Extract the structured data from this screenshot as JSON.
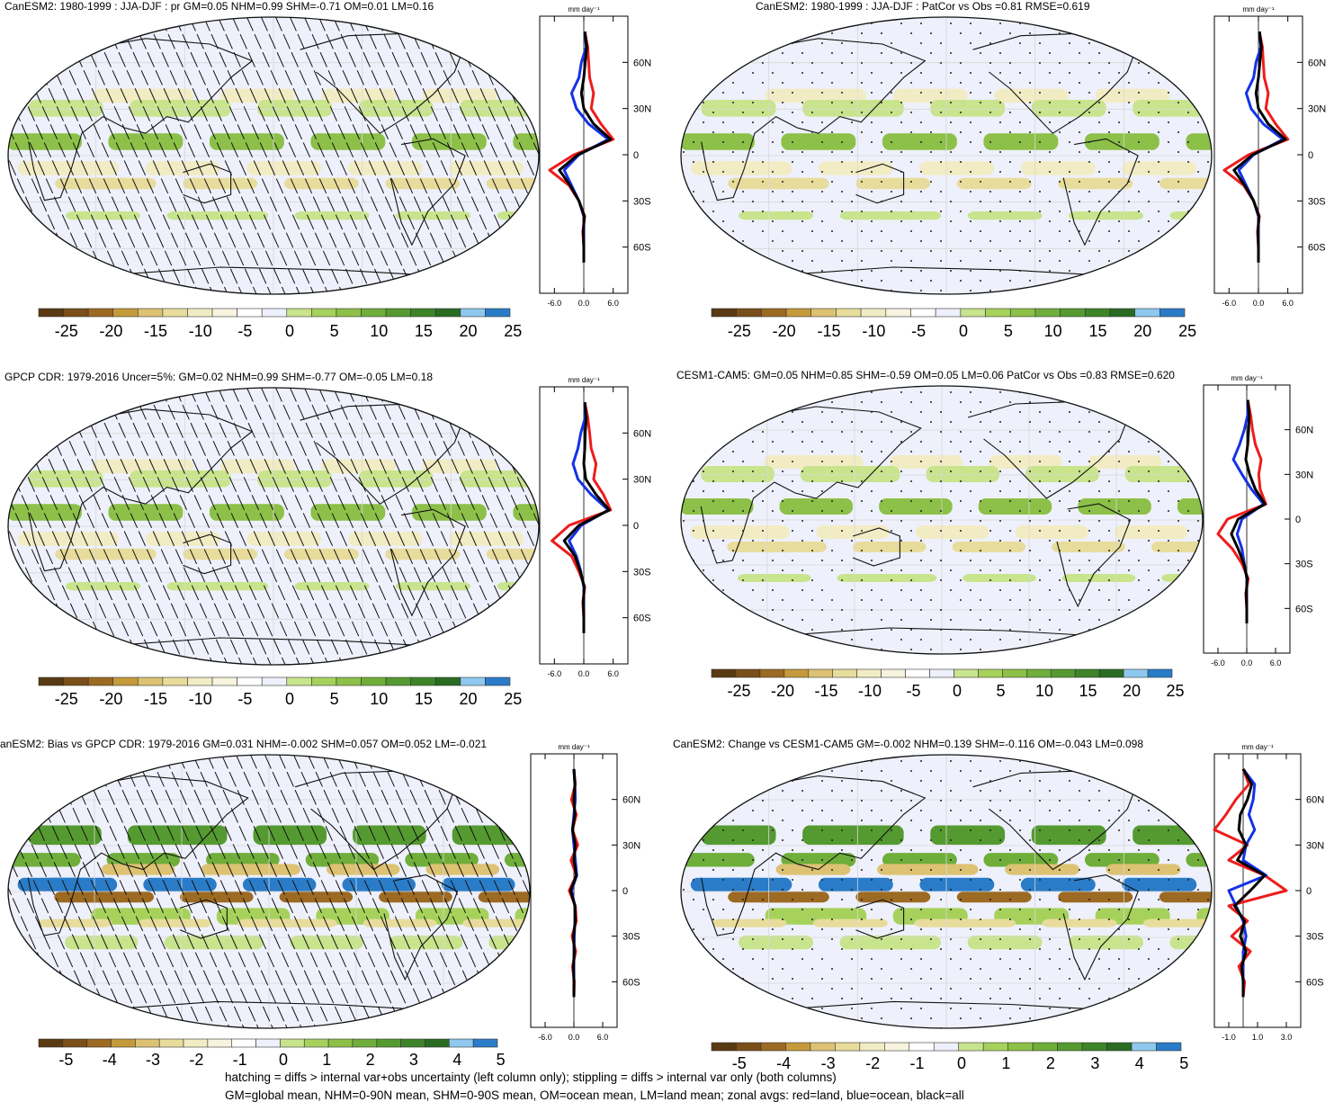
{
  "palette": [
    "#5a3a12",
    "#7a4f1a",
    "#9c6a22",
    "#c59a3a",
    "#dcc272",
    "#e8dc9c",
    "#f2ecc4",
    "#f6f3de",
    "#ffffff",
    "#eef0fb",
    "#c8e48c",
    "#a6d25c",
    "#8cc048",
    "#6fae3a",
    "#559a30",
    "#3d8428",
    "#2a6b22",
    "#8ec8ee",
    "#2a7cc8"
  ],
  "line_colors": {
    "land": "#ee1c1c",
    "ocean": "#1432e6",
    "all": "#000000"
  },
  "panels": [
    {
      "title": "CanESM2: 1980-1999 : JJA-DJF : pr GM=0.05 NHM=0.99 SHM=-0.71 OM=0.01 LM=0.16",
      "overlay": "hatch",
      "colorbar_labels": [
        "-25",
        "-20",
        "-15",
        "-10",
        "-5",
        "0",
        "5",
        "10",
        "15",
        "20",
        "25"
      ],
      "zonal_unit": "mm day⁻¹",
      "zonal_xticks": [
        "-6.0",
        "0.0",
        "6.0"
      ],
      "zonal_yticks": [
        "60N",
        "30N",
        "0",
        "30S",
        "60S"
      ]
    },
    {
      "title": "CanESM2: 1980-1999 : JJA-DJF : PatCor vs Obs =0.81 RMSE=0.619",
      "overlay": "stipple",
      "colorbar_labels": [
        "-25",
        "-20",
        "-15",
        "-10",
        "-5",
        "0",
        "5",
        "10",
        "15",
        "20",
        "25"
      ],
      "zonal_unit": "mm day⁻¹",
      "zonal_xticks": [
        "-6.0",
        "0.0",
        "6.0"
      ],
      "zonal_yticks": [
        "60N",
        "30N",
        "0",
        "30S",
        "60S"
      ]
    },
    {
      "title": "GPCP CDR: 1979-2016 Uncer=5%: GM=0.02 NHM=0.99 SHM=-0.77 OM=-0.05 LM=0.18",
      "overlay": "hatch",
      "colorbar_labels": [
        "-25",
        "-20",
        "-15",
        "-10",
        "-5",
        "0",
        "5",
        "10",
        "15",
        "20",
        "25"
      ],
      "zonal_unit": "mm day⁻¹",
      "zonal_xticks": [
        "-6.0",
        "0.0",
        "6.0"
      ],
      "zonal_yticks": [
        "60N",
        "30N",
        "0",
        "30S",
        "60S"
      ]
    },
    {
      "title": "CESM1-CAM5: GM=0.05 NHM=0.85 SHM=-0.59 OM=0.05 LM=0.06 PatCor vs Obs =0.83 RMSE=0.620",
      "overlay": "stipple",
      "colorbar_labels": [
        "-25",
        "-20",
        "-15",
        "-10",
        "-5",
        "0",
        "5",
        "10",
        "15",
        "20",
        "25"
      ],
      "zonal_unit": "mm day⁻¹",
      "zonal_xticks": [
        "-6.0",
        "0.0",
        "6.0"
      ],
      "zonal_yticks": [
        "60N",
        "30N",
        "0",
        "30S",
        "60S"
      ]
    },
    {
      "title": "anESM2: Bias vs GPCP CDR: 1979-2016 GM=0.031 NHM=-0.002 SHM=0.057 OM=0.052 LM=-0.021",
      "overlay": "hatch",
      "colorbar_labels": [
        "-5",
        "-4",
        "-3",
        "-2",
        "-1",
        "0",
        "1",
        "2",
        "3",
        "4",
        "5"
      ],
      "zonal_unit": "mm day⁻¹",
      "zonal_xticks": [
        "-6.0",
        "0.0",
        "6.0"
      ],
      "zonal_yticks": [
        "60N",
        "30N",
        "0",
        "30S",
        "60S"
      ]
    },
    {
      "title": "CanESM2: Change vs CESM1-CAM5 GM=-0.002 NHM=0.139 SHM=-0.116 OM=-0.043 LM=0.098",
      "overlay": "stipple",
      "colorbar_labels": [
        "-5",
        "-4",
        "-3",
        "-2",
        "-1",
        "0",
        "1",
        "2",
        "3",
        "4",
        "5"
      ],
      "zonal_unit": "mm day⁻¹",
      "zonal_xticks": [
        "-1.0",
        "1.0",
        "3.0"
      ],
      "zonal_yticks": [
        "60N",
        "30N",
        "0",
        "30S",
        "60S"
      ]
    }
  ],
  "footer": {
    "line1": "hatching = diffs > internal var+obs uncertainty (left column only); stippling = diffs > internal var only (both columns)",
    "line2": "GM=global mean, NHM=0-90N mean, SHM=0-90S mean, OM=ocean mean, LM=land mean; zonal avgs: red=land, blue=ocean, black=all"
  },
  "chart_data": [
    {
      "type": "heatmap",
      "title": "CanESM2: 1980-1999 : JJA-DJF : pr GM=0.05 NHM=0.99 SHM=-0.71 OM=0.01 LM=0.16",
      "colorbar": [
        -25,
        -20,
        -15,
        -10,
        -5,
        0,
        5,
        10,
        15,
        20,
        25
      ],
      "zonal_mean": {
        "lat": [
          80,
          70,
          60,
          50,
          40,
          30,
          20,
          10,
          0,
          -10,
          -20,
          -30,
          -40,
          -50,
          -60,
          -70
        ],
        "land": [
          0.2,
          0.8,
          1.0,
          1.2,
          2.0,
          1.5,
          3.5,
          6.0,
          -2.0,
          -7.0,
          -3.0,
          -1.0,
          0.2,
          -0.2,
          0.0,
          0.0
        ],
        "ocean": [
          0.2,
          0.5,
          -0.5,
          -1.0,
          -2.5,
          -1.5,
          1.0,
          5.0,
          -1.0,
          -4.0,
          -2.5,
          -1.0,
          0.0,
          0.0,
          0.0,
          0.0
        ],
        "all": [
          0.2,
          0.6,
          0.3,
          0.0,
          -0.5,
          0.0,
          2.0,
          5.5,
          -1.2,
          -5.0,
          -2.8,
          -1.0,
          0.1,
          -0.1,
          0.0,
          0.0
        ]
      }
    },
    {
      "type": "heatmap",
      "title": "CanESM2: 1980-1999 : JJA-DJF : PatCor vs Obs =0.81 RMSE=0.619",
      "colorbar": [
        -25,
        -20,
        -15,
        -10,
        -5,
        0,
        5,
        10,
        15,
        20,
        25
      ],
      "zonal_mean": {
        "lat": [
          80,
          70,
          60,
          50,
          40,
          30,
          20,
          10,
          0,
          -10,
          -20,
          -30,
          -40,
          -50,
          -60,
          -70
        ],
        "land": [
          0.2,
          0.8,
          1.0,
          1.2,
          2.0,
          1.5,
          3.5,
          6.0,
          -2.0,
          -7.0,
          -3.0,
          -1.0,
          0.2,
          -0.2,
          0.0,
          0.0
        ],
        "ocean": [
          0.2,
          0.5,
          -0.5,
          -1.0,
          -2.5,
          -1.5,
          1.0,
          5.0,
          -1.0,
          -4.0,
          -2.5,
          -1.0,
          0.0,
          0.0,
          0.0,
          0.0
        ],
        "all": [
          0.2,
          0.6,
          0.3,
          0.0,
          -0.5,
          0.0,
          2.0,
          5.5,
          -1.2,
          -5.0,
          -2.8,
          -1.0,
          0.1,
          -0.1,
          0.0,
          0.0
        ]
      }
    },
    {
      "type": "heatmap",
      "title": "GPCP CDR: 1979-2016 Uncer=5%: GM=0.02 NHM=0.99 SHM=-0.77 OM=-0.05 LM=0.18",
      "colorbar": [
        -25,
        -20,
        -15,
        -10,
        -5,
        0,
        5,
        10,
        15,
        20,
        25
      ],
      "zonal_mean": {
        "lat": [
          80,
          70,
          60,
          50,
          40,
          30,
          20,
          10,
          0,
          -10,
          -20,
          -30,
          -40,
          -50,
          -60,
          -70
        ],
        "land": [
          0.2,
          0.8,
          1.2,
          1.5,
          2.5,
          2.0,
          4.0,
          5.5,
          -3.0,
          -6.5,
          -2.5,
          -1.0,
          0.2,
          -0.2,
          0.0,
          0.0
        ],
        "ocean": [
          0.2,
          0.3,
          -0.6,
          -1.2,
          -2.2,
          -1.2,
          1.5,
          5.0,
          -0.5,
          -3.0,
          -1.5,
          -0.6,
          0.0,
          0.0,
          0.0,
          0.0
        ],
        "all": [
          0.2,
          0.5,
          0.3,
          0.2,
          0.0,
          0.4,
          2.5,
          5.2,
          -1.0,
          -4.0,
          -1.8,
          -0.7,
          0.1,
          -0.1,
          0.0,
          0.0
        ]
      }
    },
    {
      "type": "heatmap",
      "title": "CESM1-CAM5: GM=0.05 NHM=0.85 SHM=-0.59 OM=0.05 LM=0.06 PatCor vs Obs =0.83 RMSE=0.620",
      "colorbar": [
        -25,
        -20,
        -15,
        -10,
        -5,
        0,
        5,
        10,
        15,
        20,
        25
      ],
      "zonal_mean": {
        "lat": [
          80,
          70,
          60,
          50,
          40,
          30,
          20,
          10,
          0,
          -10,
          -20,
          -30,
          -40,
          -50,
          -60,
          -70
        ],
        "land": [
          0.2,
          0.8,
          1.2,
          1.8,
          3.0,
          2.5,
          2.8,
          4.0,
          -4.0,
          -6.0,
          -3.0,
          -1.0,
          0.3,
          -0.2,
          0.0,
          0.0
        ],
        "ocean": [
          0.2,
          0.2,
          -0.5,
          -1.5,
          -2.8,
          -1.0,
          1.0,
          3.5,
          -1.0,
          -2.0,
          -1.0,
          -0.5,
          0.0,
          0.0,
          0.0,
          0.0
        ],
        "all": [
          0.2,
          0.5,
          0.4,
          0.2,
          -0.2,
          0.6,
          1.8,
          3.8,
          -1.8,
          -3.2,
          -1.8,
          -0.6,
          0.1,
          -0.1,
          0.0,
          0.0
        ]
      }
    },
    {
      "type": "heatmap",
      "title": "anESM2: Bias vs GPCP CDR: 1979-2016 GM=0.031 NHM=-0.002 SHM=0.057 OM=0.052 LM=-0.021",
      "colorbar": [
        -5,
        -4,
        -3,
        -2,
        -1,
        0,
        1,
        2,
        3,
        4,
        5
      ],
      "zonal_mean": {
        "lat": [
          80,
          70,
          60,
          50,
          40,
          30,
          20,
          10,
          0,
          -10,
          -20,
          -30,
          -40,
          -50,
          -60,
          -70
        ],
        "land": [
          0.0,
          0.3,
          -0.5,
          0.5,
          -0.3,
          0.8,
          -0.6,
          0.5,
          -1.0,
          0.3,
          0.5,
          -0.4,
          0.4,
          -0.3,
          0.1,
          0.0
        ],
        "ocean": [
          0.0,
          0.2,
          0.3,
          0.0,
          -0.3,
          0.0,
          0.3,
          0.6,
          -0.5,
          0.2,
          0.2,
          0.1,
          0.0,
          0.0,
          0.0,
          0.0
        ],
        "all": [
          0.0,
          0.2,
          0.0,
          0.2,
          -0.3,
          0.3,
          0.0,
          0.5,
          -0.7,
          0.2,
          0.3,
          -0.1,
          0.1,
          -0.1,
          0.0,
          0.0
        ]
      }
    },
    {
      "type": "heatmap",
      "title": "CanESM2: Change vs CESM1-CAM5 GM=-0.002 NHM=0.139 SHM=-0.116 OM=-0.043 LM=0.098",
      "colorbar": [
        -5,
        -4,
        -3,
        -2,
        -1,
        0,
        1,
        2,
        3,
        4,
        5
      ],
      "zonal_mean": {
        "lat": [
          80,
          70,
          60,
          50,
          40,
          30,
          20,
          10,
          0,
          -10,
          -20,
          -30,
          -40,
          -50,
          -60,
          -70
        ],
        "land": [
          0.0,
          0.4,
          -0.5,
          -1.2,
          -2.0,
          0.3,
          -1.0,
          1.5,
          3.0,
          -1.0,
          0.3,
          -0.8,
          0.5,
          -0.3,
          0.1,
          0.0
        ],
        "ocean": [
          0.0,
          0.8,
          0.7,
          0.4,
          0.8,
          0.2,
          0.0,
          1.6,
          -1.0,
          -0.5,
          0.0,
          0.2,
          0.0,
          0.0,
          0.0,
          0.0
        ],
        "all": [
          0.0,
          0.6,
          0.3,
          -0.2,
          -0.3,
          0.2,
          -0.4,
          1.5,
          0.5,
          -0.6,
          0.1,
          -0.2,
          0.2,
          -0.1,
          0.0,
          0.0
        ]
      }
    }
  ]
}
